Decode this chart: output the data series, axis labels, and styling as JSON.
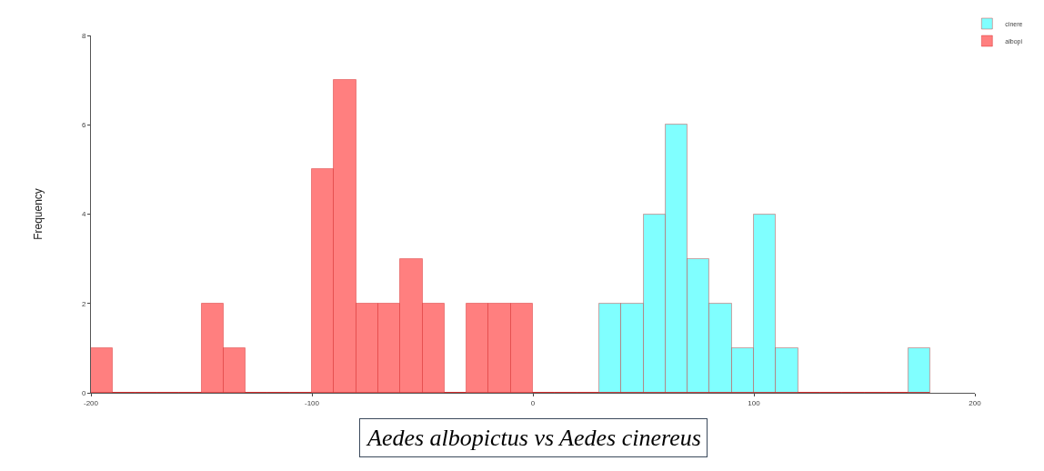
{
  "chart_data": {
    "type": "histogram",
    "ylabel": "Frequency",
    "bins": [
      -200,
      -190,
      -180,
      -170,
      -160,
      -150,
      -140,
      -130,
      -120,
      -110,
      -100,
      -90,
      -80,
      -70,
      -60,
      -50,
      -40,
      -30,
      -20,
      -10,
      0,
      10,
      20,
      30,
      40,
      50,
      60,
      70,
      80,
      90,
      100,
      110,
      120,
      130,
      140,
      150,
      160,
      170,
      180
    ],
    "series": [
      {
        "name": "cinere",
        "color": "#80ffff",
        "values": [
          0,
          0,
          0,
          0,
          0,
          0,
          0,
          0,
          0,
          0,
          0,
          0,
          0,
          0,
          0,
          0,
          0,
          0,
          0,
          0,
          0,
          0,
          0,
          2,
          2,
          4,
          6,
          3,
          2,
          1,
          4,
          1,
          0,
          0,
          0,
          0,
          0,
          1
        ]
      },
      {
        "name": "albopi",
        "color": "#ff7f7f",
        "values": [
          1,
          0,
          0,
          0,
          0,
          2,
          1,
          0,
          0,
          0,
          5,
          7,
          2,
          2,
          3,
          2,
          0,
          2,
          2,
          2,
          0,
          0,
          0,
          0,
          0,
          0,
          0,
          0,
          0,
          0,
          0,
          0,
          0,
          0,
          0,
          0,
          0,
          0
        ]
      }
    ],
    "xlim": [
      -200,
      200
    ],
    "xticks": [
      -200,
      -100,
      0,
      100,
      200
    ],
    "ylim": [
      0,
      8
    ],
    "yticks": [
      0,
      2,
      4,
      6,
      8
    ],
    "grid": false,
    "legend": "top right",
    "annotations": [
      "Aedes albopictus vs Aedes cinereus"
    ]
  }
}
